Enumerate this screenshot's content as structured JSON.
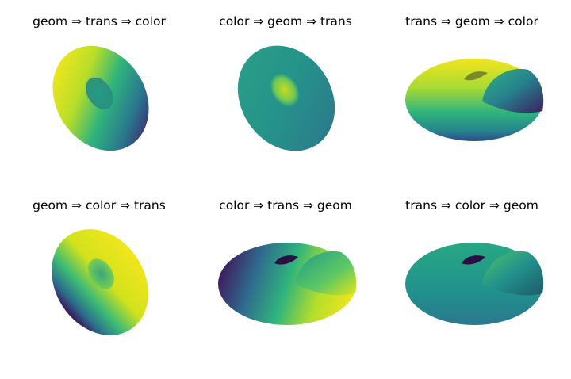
{
  "chart_data": [
    {
      "type": "surface3d",
      "title": "geom ⇒ trans ⇒ color",
      "shape": "torus",
      "palette": "viridis",
      "color_trend": "yellow top-left to dark-purple bottom",
      "view": "tilted-upright"
    },
    {
      "type": "surface3d",
      "title": "color ⇒ geom ⇒ trans",
      "shape": "torus",
      "palette": "viridis",
      "color_trend": "teal with yellow-green highlight near center",
      "view": "tilted-upright"
    },
    {
      "type": "surface3d",
      "title": "trans ⇒ geom ⇒ color",
      "shape": "torus-cutaway",
      "palette": "viridis",
      "color_trend": "yellow top to dark-blue bottom",
      "view": "flat-oblique"
    },
    {
      "type": "surface3d",
      "title": "geom ⇒ color ⇒ trans",
      "shape": "torus",
      "palette": "viridis",
      "color_trend": "yellow right to dark-purple left edge",
      "view": "tilted-upright"
    },
    {
      "type": "surface3d",
      "title": "color ⇒ trans ⇒ geom",
      "shape": "torus-cutaway",
      "palette": "viridis",
      "color_trend": "dark-purple left to yellow right",
      "view": "flat-oblique"
    },
    {
      "type": "surface3d",
      "title": "trans ⇒ color ⇒ geom",
      "shape": "torus-cutaway",
      "palette": "viridis",
      "color_trend": "mostly teal-green, dark cutaway interior",
      "view": "flat-oblique"
    }
  ]
}
